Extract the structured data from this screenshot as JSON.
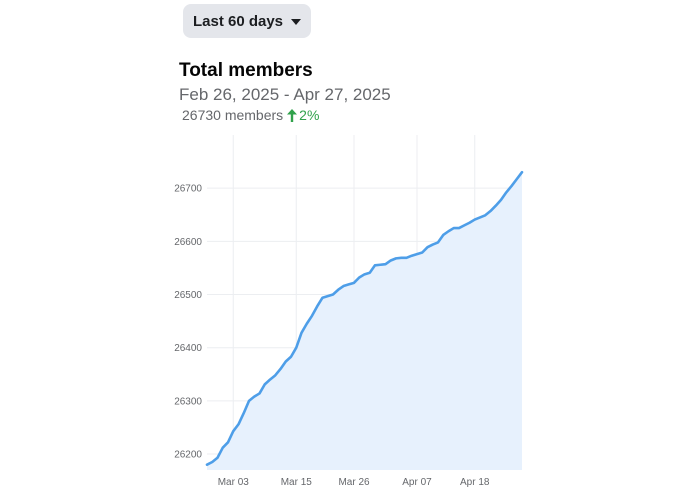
{
  "range_selector": {
    "label": "Last 60 days",
    "icon": "caret-down-icon"
  },
  "header": {
    "title": "Total members",
    "date_range": "Feb 26, 2025 - Apr 27, 2025",
    "members_text": "26730 members",
    "change_text": "2%",
    "change_icon": "arrow-up-icon",
    "change_color": "#31a24c"
  },
  "chart_data": {
    "type": "area",
    "title": "",
    "xlabel": "",
    "ylabel": "",
    "x_start": "Feb 26, 2025",
    "x_end": "Apr 27, 2025",
    "ylim": [
      26170,
      26800
    ],
    "y_ticks": [
      26200,
      26300,
      26400,
      26500,
      26600,
      26700
    ],
    "y_tick_labels": [
      "26200",
      "26300",
      "26400",
      "26500",
      "26600",
      "26700"
    ],
    "x_ticks": [
      {
        "day": 5,
        "label": "Mar 03"
      },
      {
        "day": 17,
        "label": "Mar 15"
      },
      {
        "day": 28,
        "label": "Mar 26"
      },
      {
        "day": 40,
        "label": "Apr 07"
      },
      {
        "day": 51,
        "label": "Apr 18"
      }
    ],
    "grid": true,
    "line_color": "#4e9ee8",
    "fill_color": "#e7f1fd",
    "values": [
      26180,
      26185,
      26193,
      26212,
      26222,
      26243,
      26256,
      26277,
      26300,
      26308,
      26314,
      26331,
      26340,
      26348,
      26360,
      26374,
      26383,
      26400,
      26428,
      26445,
      26460,
      26478,
      26494,
      26497,
      26500,
      26509,
      26516,
      26519,
      26522,
      26532,
      26538,
      26541,
      26555,
      26556,
      26557,
      26564,
      26568,
      26569,
      26569,
      26573,
      26576,
      26579,
      26589,
      26594,
      26598,
      26612,
      26619,
      26625,
      26625,
      26630,
      26635,
      26641,
      26645,
      26649,
      26657,
      26667,
      26678,
      26692,
      26704,
      26717,
      26730
    ]
  }
}
